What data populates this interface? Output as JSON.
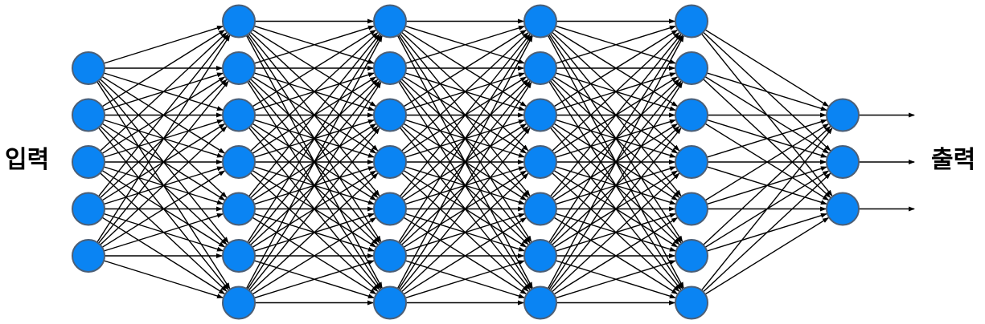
{
  "labels": {
    "input": "입력",
    "output": "출력"
  },
  "network": {
    "layers": [
      5,
      7,
      7,
      7,
      7,
      3
    ],
    "output_arrows": 3,
    "fully_connected": true
  },
  "colors": {
    "node_fill": "#0a84f3",
    "node_stroke": "#4b5f77",
    "edge": "#000000",
    "background": "#ffffff"
  }
}
